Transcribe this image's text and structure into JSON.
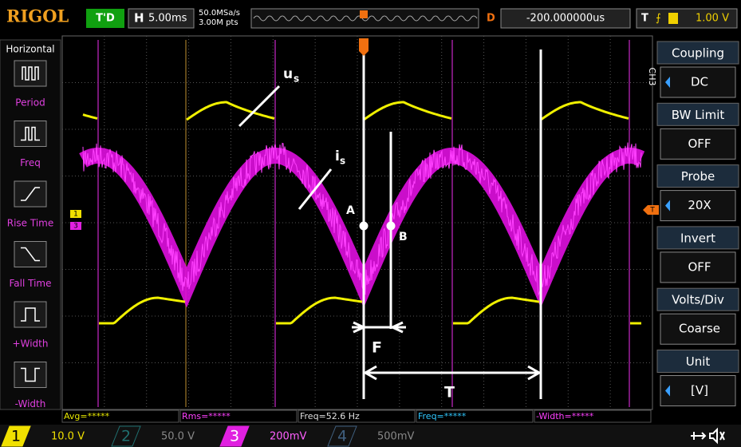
{
  "header": {
    "logo": "RIGOL",
    "run_status": "T'D",
    "timebase_label": "H",
    "timebase": "5.00ms",
    "sample_rate": "50.0MSa/s",
    "memory_depth": "3.00M pts",
    "delay_label": "D",
    "delay": "-200.000000us",
    "trigger_label": "T",
    "trigger_level": "1.00 V"
  },
  "left_menu": {
    "title": "Horizontal",
    "items": [
      "Period",
      "Freq",
      "Rise Time",
      "Fall Time",
      "+Width",
      "-Width"
    ]
  },
  "right_menu": {
    "channel": "CH3",
    "items": [
      {
        "title": "Coupling",
        "value": "DC"
      },
      {
        "title": "BW Limit",
        "value": "OFF"
      },
      {
        "title": "Probe",
        "value": "20X"
      },
      {
        "title": "Invert",
        "value": "OFF"
      },
      {
        "title": "Volts/Div",
        "value": "Coarse"
      },
      {
        "title": "Unit",
        "value": "[V]"
      }
    ]
  },
  "measurements": [
    "Avg=*****",
    "Rms=*****",
    "Freq=52.6 Hz",
    "Freq=*****",
    "-Width=*****"
  ],
  "channels": [
    {
      "number": "1",
      "scale": "10.0 V"
    },
    {
      "number": "2",
      "scale": "50.0 V"
    },
    {
      "number": "3",
      "scale": "200mV"
    },
    {
      "number": "4",
      "scale": "500mV"
    }
  ],
  "annotations": {
    "voltage": "u",
    "voltage_sub": "s",
    "current": "i",
    "current_sub": "s",
    "point_a": "A",
    "point_b": "B",
    "phase_shift": "F",
    "period": "T"
  },
  "markers": {
    "ch1": "1",
    "ch3": "3",
    "trigger": "T"
  }
}
